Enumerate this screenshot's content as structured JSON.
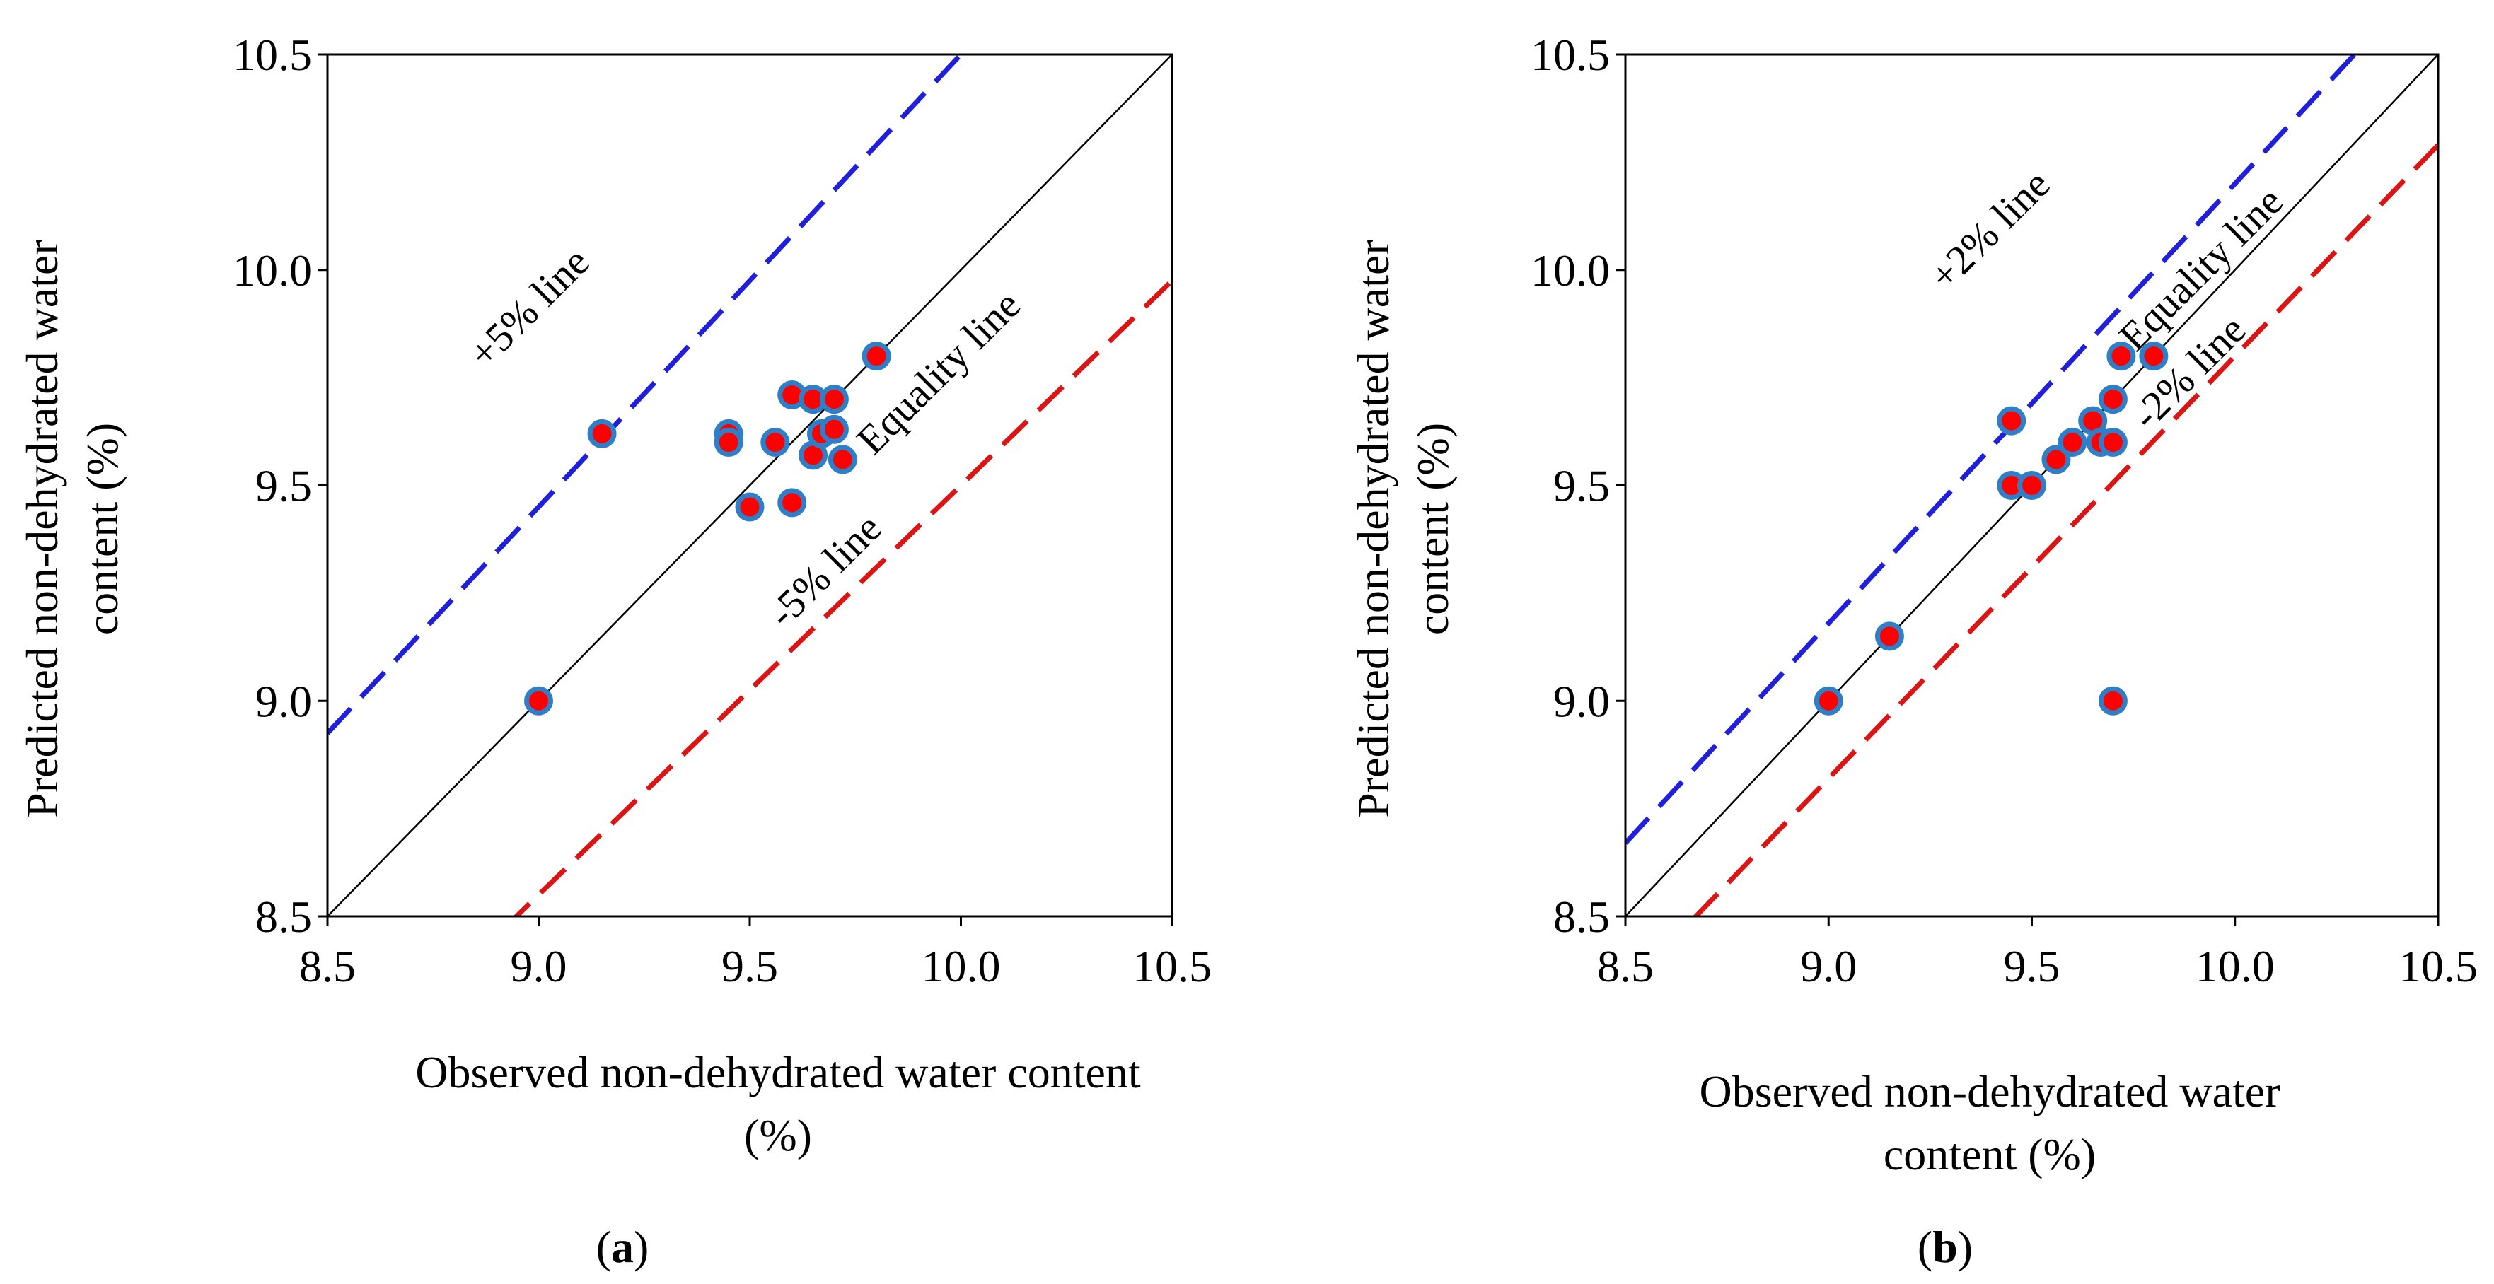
{
  "chart_data": [
    {
      "type": "scatter",
      "panel_label": "a",
      "xlabel_lines": [
        "Observed non-dehydrated water content",
        "(%)"
      ],
      "ylabel_lines": [
        "Predicted non-dehydrated water",
        "content (%)"
      ],
      "xlim": [
        8.5,
        10.5
      ],
      "ylim": [
        8.5,
        10.5
      ],
      "xticks": [
        "8.5",
        "9.0",
        "9.5",
        "10.0",
        "10.5"
      ],
      "yticks": [
        "8.5",
        "9.0",
        "9.5",
        "10.0",
        "10.5"
      ],
      "reference_lines": [
        {
          "name": "Equality line",
          "factor": 1.0,
          "color": "#000000",
          "dashed": false
        },
        {
          "name": "+5% line",
          "factor": 1.05,
          "color": "#1f1fdc",
          "dashed": true
        },
        {
          "name": "-5% line",
          "factor": 0.95,
          "color": "#dc1414",
          "dashed": true
        }
      ],
      "annotations": [
        {
          "text": "+5% line",
          "x": 9.0,
          "y": 9.89,
          "angle": -45
        },
        {
          "text": "Equality line",
          "x": 9.97,
          "y": 9.74,
          "angle": -45
        },
        {
          "text": "-5% line",
          "x": 9.7,
          "y": 9.28,
          "angle": -45
        }
      ],
      "series": [
        {
          "name": "data",
          "x": [
            9.0,
            9.15,
            9.45,
            9.45,
            9.5,
            9.56,
            9.6,
            9.6,
            9.65,
            9.65,
            9.67,
            9.7,
            9.7,
            9.72,
            9.8
          ],
          "y": [
            9.0,
            9.62,
            9.62,
            9.6,
            9.45,
            9.6,
            9.71,
            9.46,
            9.7,
            9.57,
            9.62,
            9.7,
            9.63,
            9.56,
            9.8
          ]
        }
      ]
    },
    {
      "type": "scatter",
      "panel_label": "b",
      "xlabel_lines": [
        "Observed non-dehydrated water",
        "content (%)"
      ],
      "ylabel_lines": [
        "Predicted non-dehydrated water",
        "content (%)"
      ],
      "xlim": [
        8.5,
        10.5
      ],
      "ylim": [
        8.5,
        10.5
      ],
      "xticks": [
        "8.5",
        "9.0",
        "9.5",
        "10.0",
        "10.5"
      ],
      "yticks": [
        "8.5",
        "9.0",
        "9.5",
        "10.0",
        "10.5"
      ],
      "reference_lines": [
        {
          "name": "Equality line",
          "factor": 1.0,
          "color": "#000000",
          "dashed": false
        },
        {
          "name": "+2% line",
          "factor": 1.02,
          "color": "#1f1fdc",
          "dashed": true
        },
        {
          "name": "-2% line",
          "factor": 0.98,
          "color": "#dc1414",
          "dashed": true
        }
      ],
      "annotations": [
        {
          "text": "+2% line",
          "x": 9.42,
          "y": 10.07,
          "angle": -45
        },
        {
          "text": "Equality line",
          "x": 9.94,
          "y": 9.98,
          "angle": -45
        },
        {
          "text": "-2% line",
          "x": 9.91,
          "y": 9.74,
          "angle": -45
        }
      ],
      "series": [
        {
          "name": "data",
          "x": [
            9.0,
            9.15,
            9.45,
            9.45,
            9.5,
            9.56,
            9.6,
            9.65,
            9.67,
            9.7,
            9.7,
            9.72,
            9.8,
            9.7
          ],
          "y": [
            9.0,
            9.15,
            9.65,
            9.5,
            9.5,
            9.56,
            9.6,
            9.65,
            9.6,
            9.7,
            9.6,
            9.8,
            9.8,
            9.0
          ]
        }
      ]
    }
  ]
}
